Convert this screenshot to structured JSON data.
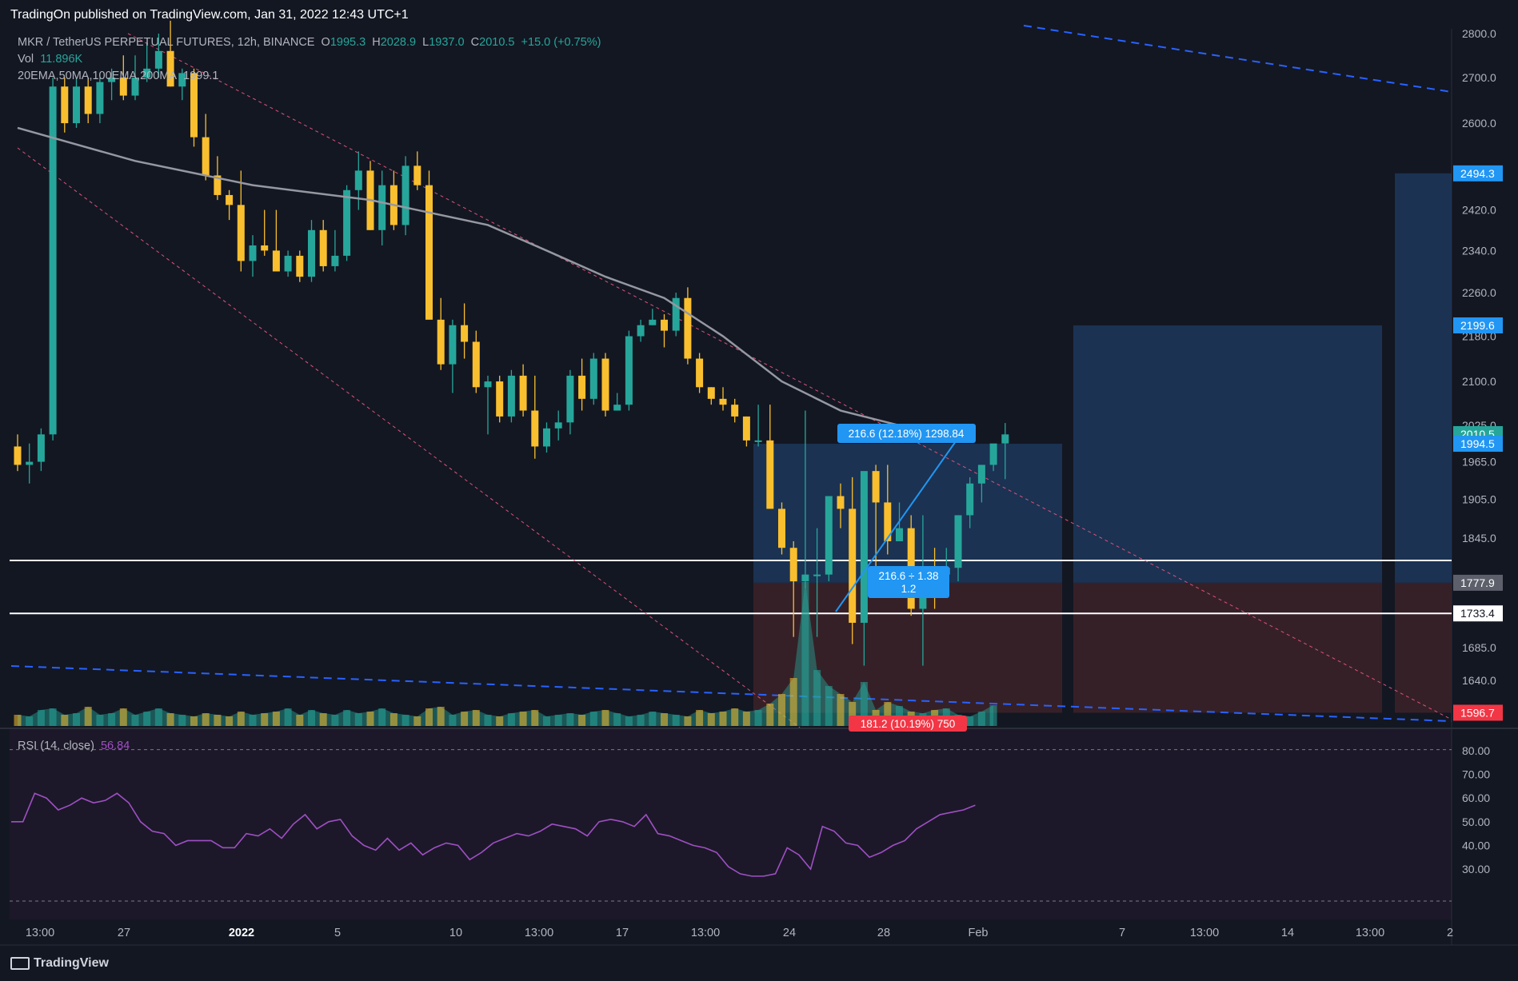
{
  "header": {
    "published": "TradingOn published on TradingView.com, Jan 31, 2022 12:43 UTC+1"
  },
  "legend": {
    "symbol": "MKR / TetherUS PERPETUAL FUTURES, 12h, BINANCE",
    "o_label": "O",
    "o": "1995.3",
    "h_label": "H",
    "h": "2028.9",
    "l_label": "L",
    "l": "1937.0",
    "c_label": "C",
    "c": "2010.5",
    "change": "+15.0 (+0.75%)",
    "vol_label": "Vol",
    "vol": "11.896K",
    "ma_label": "20EMA,50MA,100EMA,200MA",
    "ma_value": "1999.1",
    "rsi_label": "RSI (14, close)",
    "rsi_value": "56.84"
  },
  "footer": {
    "brand": "TradingView"
  },
  "colors": {
    "bull": "#26a69a",
    "bear": "#f9bf2e",
    "ma": "#9598a1",
    "rsi": "#a04fc4",
    "target_box": "#1e3a5f",
    "stop_box": "#3b2128",
    "trendline": "#e0527a",
    "dashed_blue": "#2962ff"
  },
  "chart_data": [
    {
      "type": "candlestick",
      "title": "MKR / TetherUS PERPETUAL FUTURES, 12h, BINANCE",
      "ylim": [
        1560,
        2830
      ],
      "y_scale": "log",
      "y_ticks": [
        "2800.0",
        "2700.0",
        "2600.0",
        "2420.0",
        "2340.0",
        "2260.0",
        "2180.0",
        "2100.0",
        "2025.0",
        "1965.0",
        "1905.0",
        "1845.0",
        "1685.0",
        "1640.0"
      ],
      "x_ticks": [
        "13:00",
        "27",
        "2022",
        "5",
        "10",
        "13:00",
        "17",
        "13:00",
        "24",
        "28",
        "Feb",
        "7",
        "13:00",
        "14",
        "13:00",
        "2"
      ],
      "price_badges": [
        {
          "value": "2494.3",
          "price": 2494.3,
          "color": "#2196f3"
        },
        {
          "value": "2199.6",
          "price": 2199.6,
          "color": "#2196f3"
        },
        {
          "value": "2010.5",
          "price": 2010.5,
          "color": "#26a69a"
        },
        {
          "value": "1994.5",
          "price": 1994.5,
          "color": "#2196f3"
        },
        {
          "value": "1777.9",
          "price": 1777.9,
          "color": "#5d606b"
        },
        {
          "value": "1733.4",
          "price": 1733.4,
          "color": "#ffffff"
        },
        {
          "value": "1596.7",
          "price": 1596.7,
          "color": "#f23645"
        }
      ],
      "horizontal_lines": [
        1811,
        1733.4
      ],
      "candles": [
        [
          1990,
          2010,
          1950,
          1960
        ],
        [
          1960,
          1995,
          1930,
          1965
        ],
        [
          1965,
          2020,
          1950,
          2010
        ],
        [
          2010,
          2700,
          2000,
          2680
        ],
        [
          2680,
          2700,
          2580,
          2600
        ],
        [
          2600,
          2700,
          2590,
          2680
        ],
        [
          2680,
          2700,
          2600,
          2620
        ],
        [
          2620,
          2700,
          2600,
          2690
        ],
        [
          2690,
          2720,
          2650,
          2700
        ],
        [
          2700,
          2750,
          2650,
          2660
        ],
        [
          2660,
          2750,
          2650,
          2700
        ],
        [
          2700,
          2780,
          2690,
          2720
        ],
        [
          2720,
          2800,
          2700,
          2760
        ],
        [
          2760,
          2830,
          2680,
          2680
        ],
        [
          2680,
          2720,
          2650,
          2710
        ],
        [
          2710,
          2720,
          2550,
          2570
        ],
        [
          2570,
          2620,
          2480,
          2490
        ],
        [
          2490,
          2530,
          2440,
          2450
        ],
        [
          2450,
          2460,
          2400,
          2430
        ],
        [
          2430,
          2500,
          2300,
          2320
        ],
        [
          2320,
          2370,
          2290,
          2350
        ],
        [
          2350,
          2420,
          2330,
          2340
        ],
        [
          2340,
          2420,
          2300,
          2300
        ],
        [
          2300,
          2340,
          2290,
          2330
        ],
        [
          2330,
          2340,
          2280,
          2290
        ],
        [
          2290,
          2400,
          2280,
          2380
        ],
        [
          2380,
          2400,
          2300,
          2310
        ],
        [
          2310,
          2380,
          2300,
          2330
        ],
        [
          2330,
          2470,
          2320,
          2460
        ],
        [
          2460,
          2540,
          2420,
          2500
        ],
        [
          2500,
          2520,
          2380,
          2380
        ],
        [
          2380,
          2500,
          2350,
          2470
        ],
        [
          2470,
          2500,
          2380,
          2390
        ],
        [
          2390,
          2530,
          2370,
          2510
        ],
        [
          2510,
          2540,
          2460,
          2470
        ],
        [
          2470,
          2500,
          2220,
          2210
        ],
        [
          2210,
          2250,
          2120,
          2130
        ],
        [
          2130,
          2210,
          2080,
          2200
        ],
        [
          2200,
          2240,
          2140,
          2170
        ],
        [
          2170,
          2190,
          2080,
          2090
        ],
        [
          2090,
          2110,
          2010,
          2100
        ],
        [
          2100,
          2110,
          2030,
          2040
        ],
        [
          2040,
          2120,
          2030,
          2110
        ],
        [
          2110,
          2130,
          2040,
          2050
        ],
        [
          2050,
          2110,
          1970,
          1990
        ],
        [
          1990,
          2030,
          1980,
          2020
        ],
        [
          2020,
          2050,
          2000,
          2030
        ],
        [
          2030,
          2120,
          2010,
          2110
        ],
        [
          2110,
          2140,
          2050,
          2070
        ],
        [
          2070,
          2150,
          2060,
          2140
        ],
        [
          2140,
          2150,
          2040,
          2050
        ],
        [
          2050,
          2080,
          2050,
          2060
        ],
        [
          2060,
          2190,
          2050,
          2180
        ],
        [
          2180,
          2210,
          2170,
          2200
        ],
        [
          2200,
          2230,
          2200,
          2210
        ],
        [
          2210,
          2220,
          2160,
          2190
        ],
        [
          2190,
          2260,
          2180,
          2250
        ],
        [
          2250,
          2270,
          2130,
          2140
        ],
        [
          2140,
          2150,
          2080,
          2090
        ],
        [
          2090,
          2090,
          2060,
          2070
        ],
        [
          2070,
          2090,
          2050,
          2060
        ],
        [
          2060,
          2070,
          2030,
          2040
        ],
        [
          2040,
          2040,
          1990,
          2000
        ],
        [
          2000,
          2060,
          1990,
          2000
        ],
        [
          2000,
          2060,
          1890,
          1890
        ],
        [
          1890,
          1900,
          1820,
          1830
        ],
        [
          1830,
          1840,
          1700,
          1780
        ],
        [
          1780,
          2050,
          1770,
          1790
        ],
        [
          1790,
          1860,
          1700,
          1790
        ],
        [
          1790,
          1910,
          1780,
          1910
        ],
        [
          1910,
          1930,
          1860,
          1890
        ],
        [
          1890,
          1940,
          1690,
          1720
        ],
        [
          1720,
          1940,
          1660,
          1950
        ],
        [
          1950,
          1960,
          1780,
          1900
        ],
        [
          1900,
          1960,
          1820,
          1840
        ],
        [
          1840,
          1900,
          1840,
          1860
        ],
        [
          1860,
          1880,
          1730,
          1740
        ],
        [
          1740,
          1880,
          1660,
          1800
        ],
        [
          1800,
          1830,
          1740,
          1790
        ],
        [
          1790,
          1830,
          1760,
          1800
        ],
        [
          1800,
          1880,
          1780,
          1880
        ],
        [
          1880,
          1940,
          1860,
          1930
        ],
        [
          1930,
          1960,
          1900,
          1960
        ],
        [
          1960,
          1990,
          1950,
          1995
        ],
        [
          1995,
          2029,
          1937,
          2010
        ]
      ],
      "moving_average": [
        [
          0,
          2590
        ],
        [
          10,
          2520
        ],
        [
          20,
          2470
        ],
        [
          30,
          2440
        ],
        [
          40,
          2390
        ],
        [
          45,
          2340
        ],
        [
          50,
          2290
        ],
        [
          55,
          2250
        ],
        [
          60,
          2180
        ],
        [
          65,
          2100
        ],
        [
          70,
          2050
        ],
        [
          75,
          2025
        ]
      ]
    },
    {
      "type": "bar",
      "title": "Vol",
      "note": "volume histogram drawn in colors of candles"
    },
    {
      "type": "line",
      "title": "RSI (14, close)",
      "ylim": [
        20,
        82
      ],
      "y_ticks": [
        "80.00",
        "70.00",
        "60.00",
        "50.00",
        "40.00",
        "30.00"
      ],
      "values": [
        50,
        50,
        62,
        60,
        55,
        57,
        60,
        58,
        59,
        62,
        58,
        50,
        46,
        45,
        40,
        42,
        42,
        42,
        39,
        39,
        45,
        44,
        47,
        43,
        49,
        53,
        47,
        50,
        51,
        44,
        40,
        38,
        43,
        38,
        41,
        36,
        39,
        41,
        40,
        34,
        37,
        41,
        43,
        45,
        44,
        46,
        49,
        48,
        47,
        44,
        50,
        51,
        50,
        48,
        53,
        45,
        44,
        42,
        40,
        39,
        37,
        31,
        28,
        27,
        27,
        28,
        39,
        36,
        30,
        48,
        46,
        41,
        40,
        35,
        37,
        40,
        42,
        47,
        50,
        53,
        54,
        55,
        57
      ]
    }
  ],
  "drawings": {
    "target_label": "216.6 (12.18%) 1298.84",
    "stop_label": "181.2 (10.19%) 750",
    "ratio_line1": "216.6 ÷ 1.38",
    "ratio_line2": "1.2"
  }
}
